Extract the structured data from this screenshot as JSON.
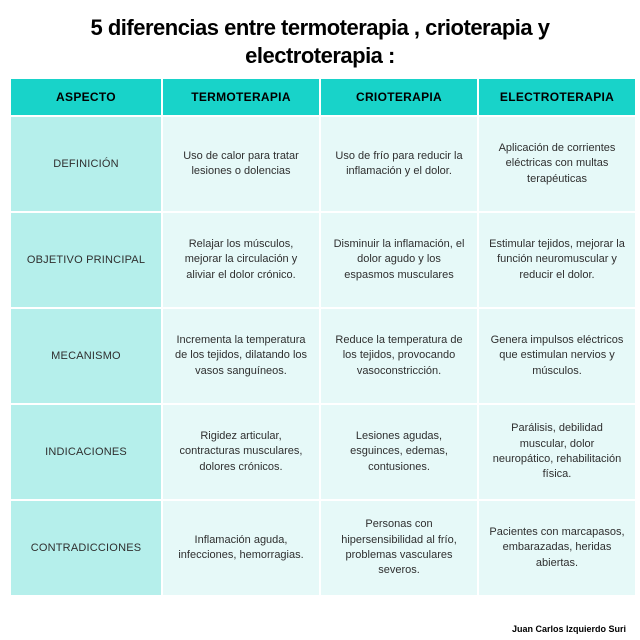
{
  "title": "5 diferencias entre termoterapia , crioterapia y electroterapia :",
  "credit": "Juan Carlos Izquierdo Suri",
  "colors": {
    "header_bg": "#18d3c9",
    "rowlabel_bg": "#b5efeb",
    "cell_bg": "#e6f9f8",
    "text": "#2f2f2f",
    "title_color": "#000000",
    "page_bg": "#ffffff"
  },
  "table": {
    "type": "table",
    "columns": [
      "ASPECTO",
      "TERMOTERAPIA",
      "CRIOTERAPIA",
      "ELECTROTERAPIA"
    ],
    "rows": [
      {
        "aspect": "DEFINICIÓN",
        "termo": "Uso de calor para tratar lesiones o dolencias",
        "crio": "Uso de frío para reducir la inflamación y el dolor.",
        "electro": "Aplicación de corrientes eléctricas con multas terapéuticas"
      },
      {
        "aspect": "OBJETIVO PRINCIPAL",
        "termo": "Relajar los músculos, mejorar la circulación y aliviar el dolor crónico.",
        "crio": "Disminuir la inflamación, el dolor agudo y los espasmos musculares",
        "electro": "Estimular tejidos, mejorar la función neuromuscular y reducir el dolor."
      },
      {
        "aspect": "MECANISMO",
        "termo": "Incrementa la temperatura de los tejidos, dilatando los vasos sanguíneos.",
        "crio": "Reduce la temperatura de los tejidos, provocando vasoconstricción.",
        "electro": "Genera impulsos eléctricos que estimulan nervios y músculos."
      },
      {
        "aspect": "INDICACIONES",
        "termo": "Rigidez articular, contracturas musculares, dolores crónicos.",
        "crio": "Lesiones agudas, esguinces, edemas, contusiones.",
        "electro": "Parálisis, debilidad muscular, dolor neuropático, rehabilitación física."
      },
      {
        "aspect": "CONTRADICCIONES",
        "termo": "Inflamación aguda, infecciones, hemorragias.",
        "crio": "Personas con hipersensibilidad al frío, problemas vasculares severos.",
        "electro": "Pacientes con marcapasos, embarazadas, heridas abiertas."
      }
    ]
  }
}
